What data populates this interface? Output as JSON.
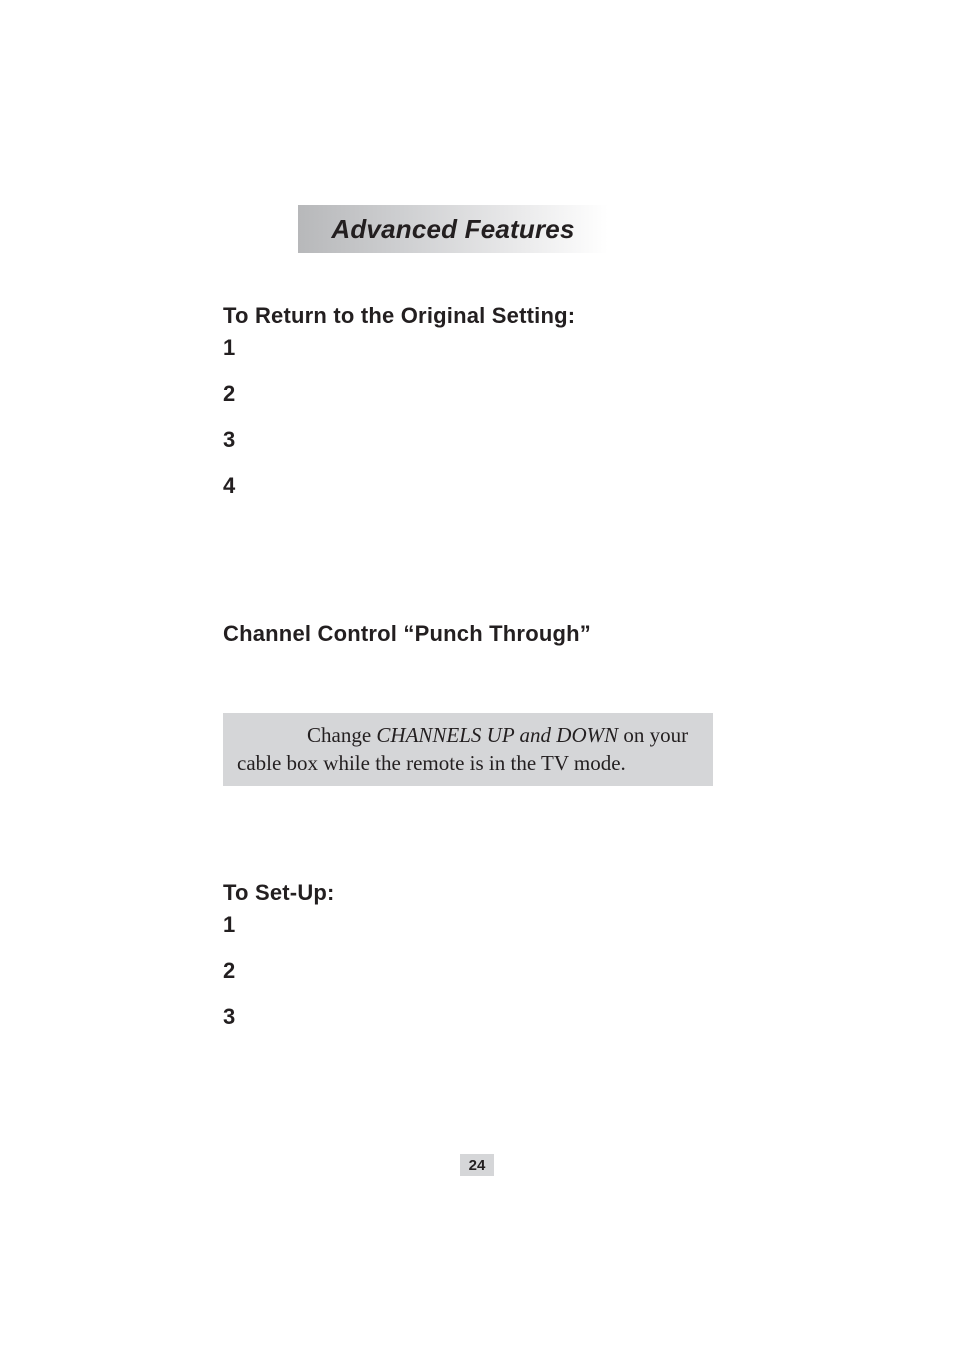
{
  "title": "Advanced Features",
  "section1": {
    "heading": "To Return to the Original Setting:",
    "steps": [
      "1",
      "2",
      "3",
      "4"
    ]
  },
  "section2": {
    "heading": "Channel Control “Punch Through”",
    "example_lead": "Change ",
    "example_italic": "CHANNELS UP and DOWN",
    "example_tail": " on your cable box while the remote is in the TV mode."
  },
  "section3": {
    "heading": "To Set-Up:",
    "steps": [
      "1",
      "2",
      "3"
    ]
  },
  "page_number": "24",
  "colors": {
    "band_gradient_start": "#b7b8ba",
    "band_gradient_end": "#ffffff",
    "box_bg": "#d5d6d8",
    "text": "#231f20",
    "page_bg": "#ffffff"
  },
  "typography": {
    "title_fontsize": 26,
    "heading_fontsize": 22,
    "body_fontsize": 21,
    "pagenum_fontsize": 15
  }
}
